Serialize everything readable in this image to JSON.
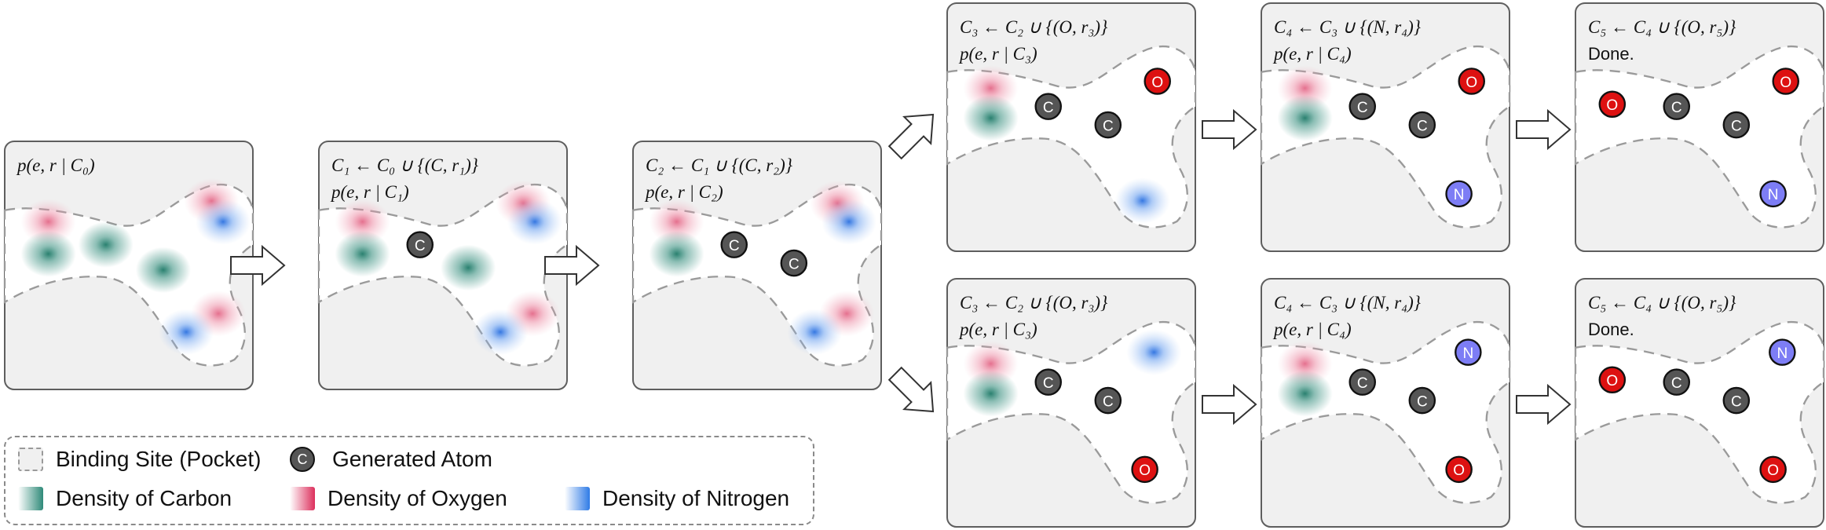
{
  "panels": [
    {
      "id": "p0",
      "label1": "p(e, r | C₀)",
      "label2": "",
      "atoms": [],
      "densities": [
        {
          "type": "oxygen",
          "dx": 38,
          "dy": 70
        },
        {
          "type": "carbon",
          "dx": 38,
          "dy": 98
        },
        {
          "type": "carbon",
          "dx": 88,
          "dy": 90
        },
        {
          "type": "carbon",
          "dx": 138,
          "dy": 112
        },
        {
          "type": "oxygen",
          "dx": 180,
          "dy": 52
        },
        {
          "type": "nitrogen",
          "dx": 190,
          "dy": 70
        },
        {
          "type": "oxygen",
          "dx": 186,
          "dy": 150
        },
        {
          "type": "nitrogen",
          "dx": 158,
          "dy": 166
        }
      ]
    },
    {
      "id": "p1",
      "label1": "C₁ ← C₀ ∪ {(C, r₁)}",
      "label2": "p(e, r | C₁)",
      "atoms": [
        {
          "el": "C",
          "dx": 88,
          "dy": 90
        }
      ],
      "densities": [
        {
          "type": "oxygen",
          "dx": 38,
          "dy": 70
        },
        {
          "type": "carbon",
          "dx": 38,
          "dy": 98
        },
        {
          "type": "carbon",
          "dx": 130,
          "dy": 110
        },
        {
          "type": "oxygen",
          "dx": 178,
          "dy": 54
        },
        {
          "type": "nitrogen",
          "dx": 188,
          "dy": 70
        },
        {
          "type": "oxygen",
          "dx": 186,
          "dy": 150
        },
        {
          "type": "nitrogen",
          "dx": 158,
          "dy": 166
        }
      ]
    },
    {
      "id": "p2",
      "label1": "C₂ ← C₁ ∪ {(C, r₂)}",
      "label2": "p(e, r | C₂)",
      "atoms": [
        {
          "el": "C",
          "dx": 88,
          "dy": 90
        },
        {
          "el": "C",
          "dx": 140,
          "dy": 106
        }
      ],
      "densities": [
        {
          "type": "oxygen",
          "dx": 38,
          "dy": 70
        },
        {
          "type": "carbon",
          "dx": 38,
          "dy": 98
        },
        {
          "type": "oxygen",
          "dx": 178,
          "dy": 54
        },
        {
          "type": "nitrogen",
          "dx": 188,
          "dy": 70
        },
        {
          "type": "oxygen",
          "dx": 186,
          "dy": 150
        },
        {
          "type": "nitrogen",
          "dx": 158,
          "dy": 166
        }
      ]
    },
    {
      "id": "p3a",
      "label1": "C₃ ← C₂ ∪ {(O, r₃)}",
      "label2": "p(e, r | C₃)",
      "atoms": [
        {
          "el": "C",
          "dx": 88,
          "dy": 90
        },
        {
          "el": "C",
          "dx": 140,
          "dy": 106
        },
        {
          "el": "O",
          "dx": 183,
          "dy": 68
        }
      ],
      "densities": [
        {
          "type": "oxygen",
          "dx": 38,
          "dy": 74
        },
        {
          "type": "carbon",
          "dx": 38,
          "dy": 100
        },
        {
          "type": "nitrogen",
          "dx": 170,
          "dy": 172
        }
      ]
    },
    {
      "id": "p4a",
      "label1": "C₄ ← C₃ ∪ {(N, r₄)}",
      "label2": "p(e, r | C₄)",
      "atoms": [
        {
          "el": "C",
          "dx": 88,
          "dy": 90
        },
        {
          "el": "C",
          "dx": 140,
          "dy": 106
        },
        {
          "el": "O",
          "dx": 183,
          "dy": 68
        },
        {
          "el": "N",
          "dx": 172,
          "dy": 166
        }
      ],
      "densities": [
        {
          "type": "oxygen",
          "dx": 38,
          "dy": 74
        },
        {
          "type": "carbon",
          "dx": 38,
          "dy": 100
        }
      ]
    },
    {
      "id": "p5a",
      "label1": "C₅ ← C₄ ∪ {(O, r₅)}",
      "label2": "Done.",
      "atoms": [
        {
          "el": "O",
          "dx": 32,
          "dy": 88
        },
        {
          "el": "C",
          "dx": 88,
          "dy": 90
        },
        {
          "el": "C",
          "dx": 140,
          "dy": 106
        },
        {
          "el": "O",
          "dx": 183,
          "dy": 68
        },
        {
          "el": "N",
          "dx": 172,
          "dy": 166
        }
      ],
      "densities": []
    },
    {
      "id": "p3b",
      "label1": "C₃ ← C₂ ∪ {(O, r₃)}",
      "label2": "p(e, r | C₃)",
      "atoms": [
        {
          "el": "C",
          "dx": 88,
          "dy": 90
        },
        {
          "el": "C",
          "dx": 140,
          "dy": 106
        },
        {
          "el": "O",
          "dx": 172,
          "dy": 166
        }
      ],
      "densities": [
        {
          "type": "oxygen",
          "dx": 38,
          "dy": 74
        },
        {
          "type": "carbon",
          "dx": 38,
          "dy": 100
        },
        {
          "type": "nitrogen",
          "dx": 180,
          "dy": 64
        }
      ]
    },
    {
      "id": "p4b",
      "label1": "C₄ ← C₃ ∪ {(N, r₄)}",
      "label2": "p(e, r | C₄)",
      "atoms": [
        {
          "el": "C",
          "dx": 88,
          "dy": 90
        },
        {
          "el": "C",
          "dx": 140,
          "dy": 106
        },
        {
          "el": "O",
          "dx": 172,
          "dy": 166
        },
        {
          "el": "N",
          "dx": 180,
          "dy": 64
        }
      ],
      "densities": [
        {
          "type": "oxygen",
          "dx": 38,
          "dy": 74
        },
        {
          "type": "carbon",
          "dx": 38,
          "dy": 100
        }
      ]
    },
    {
      "id": "p5b",
      "label1": "C₅ ← C₄ ∪ {(O, r₅)}",
      "label2": "Done.",
      "atoms": [
        {
          "el": "O",
          "dx": 32,
          "dy": 88
        },
        {
          "el": "C",
          "dx": 88,
          "dy": 90
        },
        {
          "el": "C",
          "dx": 140,
          "dy": 106
        },
        {
          "el": "O",
          "dx": 172,
          "dy": 166
        },
        {
          "el": "N",
          "dx": 180,
          "dy": 64
        }
      ],
      "densities": []
    }
  ],
  "arrows": [
    {
      "from": "p0",
      "to": "p1",
      "shape": "right"
    },
    {
      "from": "p1",
      "to": "p2",
      "shape": "right"
    },
    {
      "from": "p2",
      "to": "p3a",
      "shape": "up-right"
    },
    {
      "from": "p2",
      "to": "p3b",
      "shape": "down-right"
    },
    {
      "from": "p3a",
      "to": "p4a",
      "shape": "right"
    },
    {
      "from": "p4a",
      "to": "p5a",
      "shape": "right"
    },
    {
      "from": "p3b",
      "to": "p4b",
      "shape": "right"
    },
    {
      "from": "p4b",
      "to": "p5b",
      "shape": "right"
    }
  ],
  "legend": {
    "pocket": "Binding Site (Pocket)",
    "atom_symbol": "C",
    "atom": "Generated Atom",
    "carbon": "Density of Carbon",
    "oxygen": "Density of Oxygen",
    "nitrogen": "Density of Nitrogen"
  },
  "colors": {
    "panel_bg": "#f0f0f0",
    "carbon_atom": "#555555",
    "oxygen_atom": "#dd1111",
    "nitrogen_atom": "#7d7df5",
    "carbon_density": "#2f8a79",
    "oxygen_density": "#dc2f5c",
    "nitrogen_density": "#2f7be6"
  }
}
